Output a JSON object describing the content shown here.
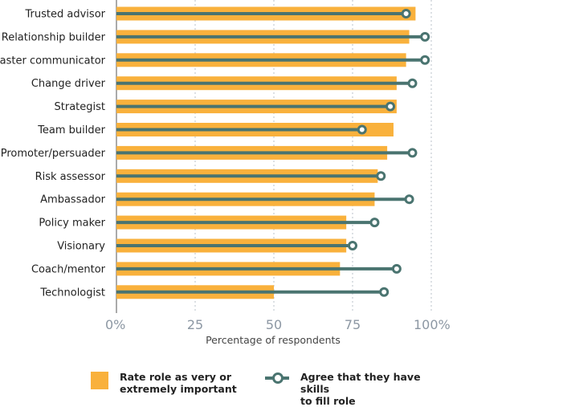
{
  "chart_data": {
    "type": "bar",
    "orientation": "horizontal",
    "categories": [
      "Trusted advisor",
      "Relationship builder",
      "Master communicator",
      "Change driver",
      "Strategist",
      "Team builder",
      "Promoter/persuader",
      "Risk assessor",
      "Ambassador",
      "Policy maker",
      "Visionary",
      "Coach/mentor",
      "Technologist"
    ],
    "series": [
      {
        "name": "Rate role as very or extremely important",
        "mark": "bar",
        "color": "#f9b13c",
        "values": [
          95,
          93,
          92,
          89,
          89,
          88,
          86,
          83,
          82,
          73,
          73,
          71,
          50
        ]
      },
      {
        "name": "Agree that they have skills to fill role",
        "mark": "lollipop",
        "color": "#4a7470",
        "values": [
          92,
          98,
          98,
          94,
          87,
          78,
          94,
          84,
          93,
          82,
          75,
          89,
          85
        ]
      }
    ],
    "xlabel": "Percentage of respondents",
    "xlim": [
      0,
      100
    ],
    "xticks": [
      "0%",
      "25",
      "50",
      "75",
      "100%"
    ],
    "grid": "vertical dotted",
    "legend_position": "bottom"
  },
  "legend": {
    "bar_label_line1": "Rate role as very or",
    "bar_label_line2": "extremely important",
    "line_label_line1": "Agree that they have skills",
    "line_label_line2": "to fill role"
  }
}
